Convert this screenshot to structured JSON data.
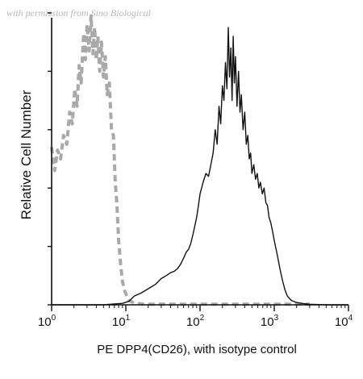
{
  "watermark": "with permission from Sino Biological",
  "chart_data": {
    "type": "line",
    "xlabel": "PE DPP4(CD26), with isotype control",
    "ylabel": "Relative Cell Number",
    "x_scale": "log",
    "xlim": [
      1,
      10000
    ],
    "x_ticks": [
      {
        "value": 1,
        "base": "10",
        "exp": "0"
      },
      {
        "value": 10,
        "base": "10",
        "exp": "1"
      },
      {
        "value": 100,
        "base": "10",
        "exp": "2"
      },
      {
        "value": 1000,
        "base": "10",
        "exp": "3"
      },
      {
        "value": 10000,
        "base": "10",
        "exp": "4"
      }
    ],
    "ylim": [
      0,
      100
    ],
    "y_tick_values": [
      0,
      20,
      40,
      60,
      80,
      100
    ],
    "grid": false,
    "series": [
      {
        "style": "dashed",
        "color": "#a9a9a9",
        "points": [
          [
            1.0,
            54
          ],
          [
            1.1,
            46
          ],
          [
            1.2,
            53
          ],
          [
            1.32,
            50
          ],
          [
            1.45,
            58
          ],
          [
            1.6,
            55
          ],
          [
            1.75,
            66
          ],
          [
            1.9,
            62
          ],
          [
            2.05,
            74
          ],
          [
            2.2,
            68
          ],
          [
            2.35,
            82
          ],
          [
            2.5,
            76
          ],
          [
            2.7,
            93
          ],
          [
            2.85,
            84
          ],
          [
            3.0,
            96
          ],
          [
            3.2,
            87
          ],
          [
            3.4,
            99
          ],
          [
            3.6,
            86
          ],
          [
            3.8,
            95
          ],
          [
            4.0,
            84
          ],
          [
            4.2,
            92
          ],
          [
            4.45,
            80
          ],
          [
            4.7,
            90
          ],
          [
            5.0,
            78
          ],
          [
            5.3,
            85
          ],
          [
            5.6,
            72
          ],
          [
            6.0,
            76
          ],
          [
            6.4,
            60
          ],
          [
            6.8,
            58
          ],
          [
            7.2,
            42
          ],
          [
            7.6,
            34
          ],
          [
            8.0,
            22
          ],
          [
            8.5,
            14
          ],
          [
            9.0,
            8
          ],
          [
            9.6,
            5
          ],
          [
            10.3,
            3
          ],
          [
            11,
            1.5
          ],
          [
            13,
            0.6
          ],
          [
            16,
            0.3
          ],
          [
            20,
            0.2
          ],
          [
            30,
            0.2
          ],
          [
            50,
            0.2
          ],
          [
            100,
            0.2
          ],
          [
            200,
            0.2
          ],
          [
            300,
            0.2
          ],
          [
            500,
            0.2
          ],
          [
            1000,
            0.2
          ],
          [
            2000,
            0.2
          ],
          [
            3000,
            0.2
          ]
        ]
      },
      {
        "style": "solid",
        "color": "#111111",
        "points": [
          [
            1,
            0
          ],
          [
            5,
            0
          ],
          [
            9,
            0.5
          ],
          [
            11,
            1.2
          ],
          [
            13,
            3
          ],
          [
            16,
            4
          ],
          [
            20,
            5.5
          ],
          [
            25,
            7
          ],
          [
            30,
            9
          ],
          [
            35,
            10
          ],
          [
            40,
            11
          ],
          [
            45,
            11.5
          ],
          [
            50,
            12.5
          ],
          [
            55,
            14
          ],
          [
            60,
            16
          ],
          [
            65,
            18
          ],
          [
            70,
            19
          ],
          [
            75,
            21
          ],
          [
            80,
            24
          ],
          [
            85,
            27
          ],
          [
            90,
            30
          ],
          [
            95,
            34
          ],
          [
            100,
            38
          ],
          [
            110,
            42
          ],
          [
            120,
            45
          ],
          [
            130,
            44
          ],
          [
            140,
            48
          ],
          [
            150,
            52
          ],
          [
            160,
            60
          ],
          [
            170,
            55
          ],
          [
            180,
            68
          ],
          [
            190,
            62
          ],
          [
            200,
            75
          ],
          [
            210,
            70
          ],
          [
            220,
            83
          ],
          [
            230,
            74
          ],
          [
            240,
            95
          ],
          [
            250,
            78
          ],
          [
            260,
            88
          ],
          [
            270,
            70
          ],
          [
            280,
            92
          ],
          [
            290,
            76
          ],
          [
            300,
            85
          ],
          [
            315,
            68
          ],
          [
            330,
            80
          ],
          [
            345,
            66
          ],
          [
            360,
            72
          ],
          [
            380,
            60
          ],
          [
            400,
            66
          ],
          [
            420,
            55
          ],
          [
            440,
            58
          ],
          [
            460,
            50
          ],
          [
            480,
            52
          ],
          [
            500,
            45
          ],
          [
            530,
            48
          ],
          [
            560,
            43
          ],
          [
            590,
            45
          ],
          [
            620,
            40
          ],
          [
            650,
            42
          ],
          [
            690,
            38
          ],
          [
            730,
            40
          ],
          [
            770,
            35
          ],
          [
            810,
            34
          ],
          [
            850,
            30
          ],
          [
            900,
            28
          ],
          [
            950,
            25
          ],
          [
            1000,
            22
          ],
          [
            1100,
            17
          ],
          [
            1200,
            12
          ],
          [
            1300,
            8
          ],
          [
            1400,
            5
          ],
          [
            1500,
            3
          ],
          [
            1700,
            1.5
          ],
          [
            2000,
            0.8
          ],
          [
            2500,
            0.4
          ],
          [
            3000,
            0.2
          ],
          [
            5000,
            0
          ],
          [
            10000,
            0
          ]
        ]
      }
    ]
  }
}
